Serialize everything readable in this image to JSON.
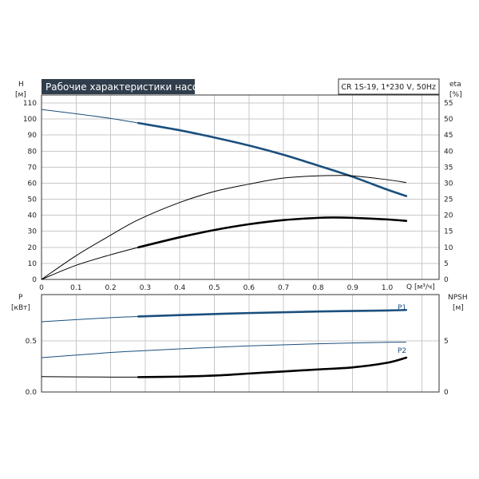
{
  "chart_data": [
    {
      "type": "line",
      "title": "Рабочие характеристики насоса",
      "subtitle": "CR 1S-19, 1*230 V, 50Hz",
      "xlabel": "Q [м³/ч]",
      "ylabel_left": [
        "H",
        "[м]"
      ],
      "ylabel_right": [
        "eta",
        "[%]"
      ],
      "xlim": [
        0,
        1.15
      ],
      "ylim_left": [
        0,
        115
      ],
      "ylim_right": [
        0,
        57.5
      ],
      "grid": true,
      "x_ticks": [
        "0",
        "0.1",
        "0.2",
        "0.3",
        "0.4",
        "0.5",
        "0.6",
        "0.7",
        "0.8",
        "0.9",
        "1.0"
      ],
      "x_tick_values": [
        0,
        0.1,
        0.2,
        0.3,
        0.4,
        0.5,
        0.6,
        0.7,
        0.8,
        0.9,
        1.0
      ],
      "y_ticks_left": [
        "0",
        "10",
        "20",
        "30",
        "40",
        "50",
        "60",
        "70",
        "80",
        "90",
        "100",
        "110"
      ],
      "y_ticks_right": [
        "0",
        "5",
        "10",
        "15",
        "20",
        "25",
        "30",
        "35",
        "40",
        "45",
        "50",
        "55"
      ],
      "series": [
        {
          "axis": "left",
          "color": "#1a4f7d",
          "x": [
            0,
            0.1,
            0.2,
            0.28,
            0.4,
            0.5,
            0.6,
            0.7,
            0.8,
            0.9,
            1.0,
            1.055
          ],
          "y": [
            106,
            103.3,
            100.4,
            97.5,
            93,
            88.5,
            83.5,
            77.7,
            71,
            64,
            56,
            52
          ],
          "highlight_from": 0.28
        },
        {
          "axis": "right",
          "color": "#000000",
          "x": [
            0,
            0.1,
            0.2,
            0.28,
            0.4,
            0.5,
            0.6,
            0.7,
            0.8,
            0.85,
            0.9,
            1.0,
            1.055
          ],
          "y": [
            0,
            7.4,
            13.8,
            18.6,
            24,
            27.4,
            29.7,
            31.6,
            32.3,
            32.4,
            32.3,
            31.1,
            30.2
          ]
        },
        {
          "axis": "left",
          "color": "#000000",
          "x": [
            0,
            0.1,
            0.2,
            0.28,
            0.4,
            0.5,
            0.6,
            0.7,
            0.8,
            0.85,
            0.9,
            1.0,
            1.055
          ],
          "y": [
            0,
            8.8,
            15.4,
            20,
            26.3,
            30.8,
            34.4,
            37,
            38.4,
            38.6,
            38.4,
            37.4,
            36.5
          ],
          "highlight_from": 0.28
        }
      ]
    },
    {
      "type": "line",
      "ylabel_left": [
        "P",
        "[кВт]"
      ],
      "ylabel_right": [
        "NPSH",
        "[м]"
      ],
      "xlim": [
        0,
        1.15
      ],
      "ylim_left": [
        0,
        0.95
      ],
      "ylim_right": [
        0,
        9.5
      ],
      "grid": true,
      "y_ticks_left": [
        "0.0",
        "0.5"
      ],
      "y_tick_values_left": [
        0,
        0.5
      ],
      "y_ticks_right": [
        "0",
        "5"
      ],
      "y_tick_values_right": [
        0,
        5
      ],
      "series": [
        {
          "name": "P1",
          "axis": "left",
          "color": "#1a4f7d",
          "x": [
            0,
            0.2,
            0.28,
            0.4,
            0.6,
            0.8,
            1.0,
            1.055
          ],
          "y": [
            0.685,
            0.725,
            0.736,
            0.75,
            0.77,
            0.785,
            0.795,
            0.8
          ],
          "highlight_from": 0.28
        },
        {
          "name": "P2",
          "axis": "left",
          "color": "#1a4f7d",
          "x": [
            0,
            0.2,
            0.28,
            0.4,
            0.6,
            0.8,
            1.0,
            1.055
          ],
          "y": [
            0.335,
            0.385,
            0.4,
            0.42,
            0.45,
            0.47,
            0.485,
            0.485
          ]
        },
        {
          "axis": "right",
          "color": "#000000",
          "x": [
            0,
            0.2,
            0.28,
            0.4,
            0.5,
            0.6,
            0.7,
            0.8,
            0.9,
            1.0,
            1.055
          ],
          "y": [
            1.5,
            1.45,
            1.45,
            1.5,
            1.6,
            1.8,
            2.0,
            2.2,
            2.4,
            2.85,
            3.35
          ],
          "highlight_from": 0.28
        }
      ]
    }
  ]
}
